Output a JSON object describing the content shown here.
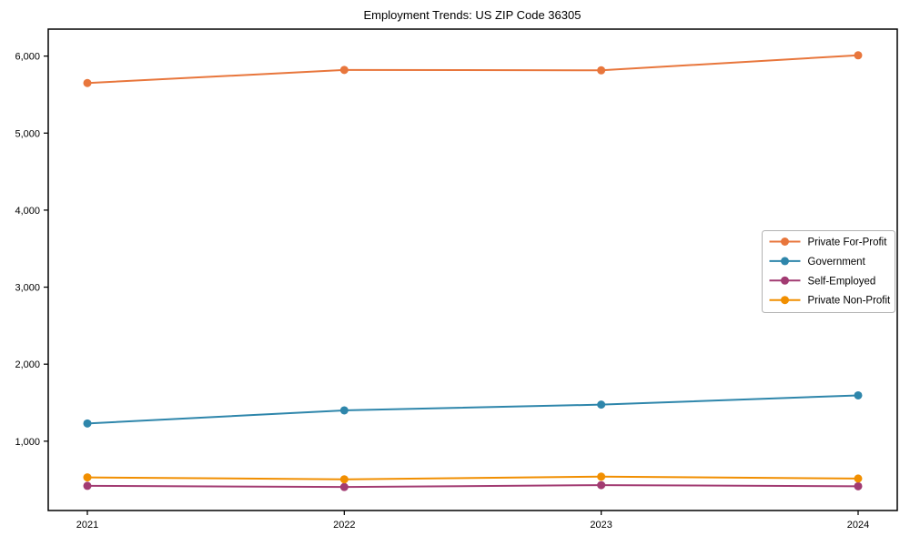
{
  "chart_data": {
    "type": "line",
    "title": "Employment Trends: US ZIP Code 36305",
    "xlabel": "",
    "ylabel": "",
    "x": [
      2021,
      2022,
      2023,
      2024
    ],
    "x_tick_labels": [
      "2021",
      "2022",
      "2023",
      "2024"
    ],
    "series": [
      {
        "name": "Private For-Profit",
        "color": "#E8763C",
        "values": [
          5650,
          5820,
          5815,
          6010
        ]
      },
      {
        "name": "Government",
        "color": "#2E86AB",
        "values": [
          1230,
          1400,
          1475,
          1595
        ]
      },
      {
        "name": "Self-Employed",
        "color": "#A23B72",
        "values": [
          420,
          405,
          430,
          415
        ]
      },
      {
        "name": "Private Non-Profit",
        "color": "#F18F01",
        "values": [
          530,
          505,
          540,
          515
        ]
      }
    ],
    "yticks": [
      1000,
      2000,
      3000,
      4000,
      5000,
      6000
    ],
    "ytick_labels": [
      "1,000",
      "2,000",
      "3,000",
      "4,000",
      "5,000",
      "6,000"
    ],
    "ylim": [
      100,
      6350
    ],
    "grid": false,
    "marker": "circle",
    "legend_position": "center-right",
    "legend_border_color": "#b3b3b3",
    "axis_color": "#000000"
  }
}
